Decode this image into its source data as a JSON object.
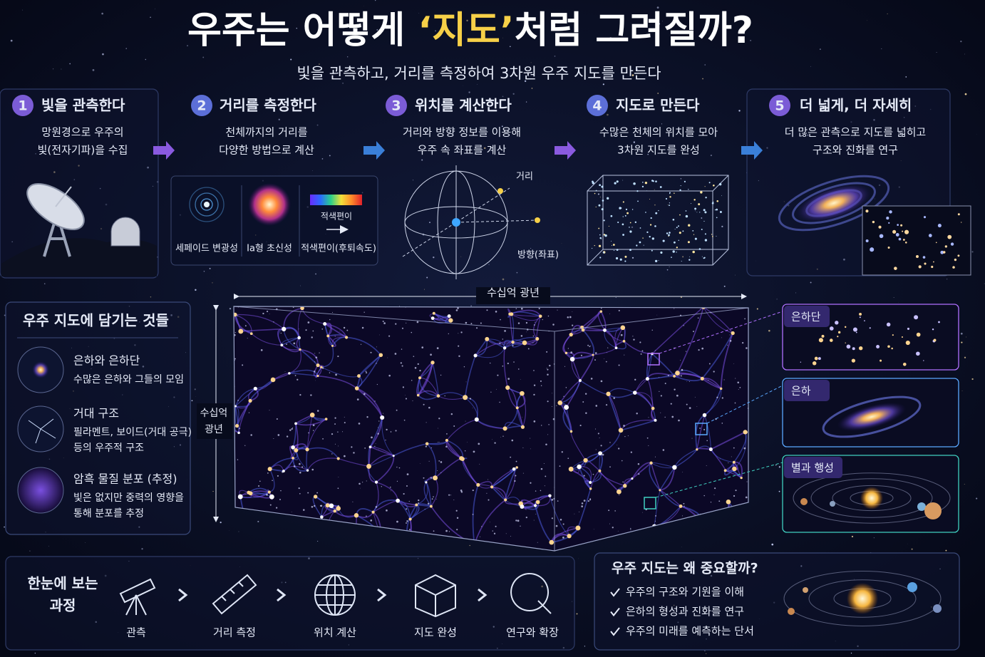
{
  "header": {
    "title": {
      "before": "우주는 어떻게 ",
      "highlight": "‘지도’",
      "after": "처럼 그려질까?"
    },
    "subtitle": "빛을 관측하고, 거리를 측정하여 3차원 우주 지도를 만든다"
  },
  "steps": [
    {
      "number": "1",
      "title": "빛을 관측한다",
      "lines": [
        "망원경으로 우주의",
        "빛(전자기파)을 수집"
      ]
    },
    {
      "number": "2",
      "title": "거리를 측정한다",
      "lines": [
        "천체까지의 거리를",
        "다양한 방법으로 계산"
      ],
      "methods": [
        "세페이드 변광성",
        "Ia형 초신성",
        "적색편이(후퇴속도)"
      ],
      "method_note": "적색편이"
    },
    {
      "number": "3",
      "title": "위치를 계산한다",
      "lines": [
        "거리와 방향 정보를 이용해",
        "우주 속 좌표를 계산"
      ],
      "diagram_labels": [
        "거리",
        "방향(좌표)"
      ]
    },
    {
      "number": "4",
      "title": "지도로 만든다",
      "lines": [
        "수많은 천체의 위치를 모아",
        "3차원 지도를 완성"
      ]
    },
    {
      "number": "5",
      "title": "더 넓게, 더 자세히",
      "lines": [
        "더 많은 관측으로 지도를 넓히고",
        "구조와 진화를 연구"
      ]
    }
  ],
  "contents": {
    "title": "우주 지도에 담기는 것들",
    "items": [
      {
        "title": "은하와 은하단",
        "lines": [
          "수많은 은하와 그들의 모임"
        ]
      },
      {
        "title": "거대 구조",
        "lines": [
          "필라멘트, 보이드(거대 공극)",
          "등의 우주적 구조"
        ]
      },
      {
        "title": "암흑 물질 분포 (추정)",
        "lines": [
          "빛은 없지만 중력의 영향을",
          "통해 분포를 추정"
        ]
      }
    ]
  },
  "map": {
    "width_label": "수십억 광년",
    "height_label": [
      "수십억",
      "광년"
    ],
    "zooms": [
      "은하단",
      "은하",
      "별과 행성"
    ]
  },
  "process": {
    "title": [
      "한눈에 보는",
      "과정"
    ],
    "steps": [
      "관측",
      "거리 측정",
      "위치 계산",
      "지도 완성",
      "연구와 확장"
    ]
  },
  "importance": {
    "title": "우주 지도는 왜 중요할까?",
    "items": [
      "우주의 구조와 기원을 이해",
      "은하의 형성과 진화를 연구",
      "우주의 미래를 예측하는 단서"
    ]
  }
}
